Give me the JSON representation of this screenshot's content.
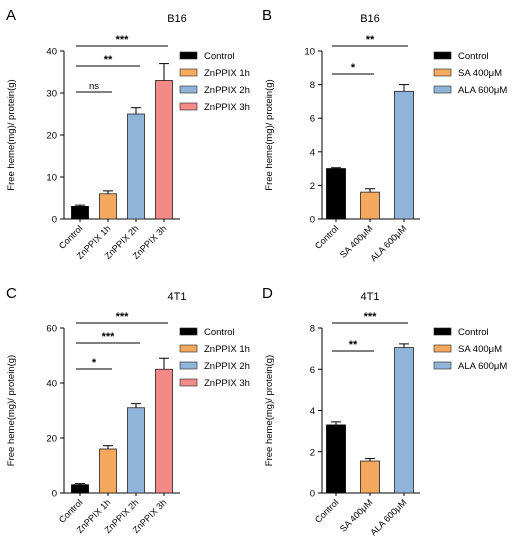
{
  "chart_data": [
    {
      "panel": "A",
      "type": "bar",
      "title": "B16",
      "ylabel": "Free heme(mg)/ protein(g)",
      "ylim": [
        0,
        40
      ],
      "yticks": [
        0,
        10,
        20,
        30,
        40
      ],
      "categories": [
        "Control",
        "ZnPPIX 1h",
        "ZnPPIX 2h",
        "ZnPPIX 3h"
      ],
      "values": [
        3,
        6,
        25,
        33
      ],
      "errors": [
        0.3,
        0.7,
        1.5,
        4
      ],
      "colors": [
        "#000000",
        "#f4a95e",
        "#8fb3d9",
        "#f28a88"
      ],
      "legend": [
        "Control",
        "ZnPPIX 1h",
        "ZnPPIX 2h",
        "ZnPPIX 3h"
      ],
      "significance": [
        {
          "from": 0,
          "to": 1,
          "label": "ns"
        },
        {
          "from": 0,
          "to": 2,
          "label": "**"
        },
        {
          "from": 0,
          "to": 3,
          "label": "***"
        }
      ]
    },
    {
      "panel": "B",
      "type": "bar",
      "title": "B16",
      "ylabel": "Free heme(mg)/ protein(g)",
      "ylim": [
        0,
        10
      ],
      "yticks": [
        0,
        2,
        4,
        6,
        8,
        10
      ],
      "categories": [
        "Control",
        "SA 400μM",
        "ALA 600μM"
      ],
      "values": [
        3.0,
        1.6,
        7.6
      ],
      "errors": [
        0.05,
        0.2,
        0.4
      ],
      "colors": [
        "#000000",
        "#f4a95e",
        "#8fb3d9"
      ],
      "legend": [
        "Control",
        "SA 400μM",
        "ALA 600μM"
      ],
      "significance": [
        {
          "from": 0,
          "to": 1,
          "label": "*"
        },
        {
          "from": 0,
          "to": 2,
          "label": "**"
        }
      ]
    },
    {
      "panel": "C",
      "type": "bar",
      "title": "4T1",
      "ylabel": "Free heme(mg)/ protein(g)",
      "ylim": [
        0,
        60
      ],
      "yticks": [
        0,
        20,
        40,
        60
      ],
      "categories": [
        "Control",
        "ZnPPIX 1h",
        "ZnPPIX 2h",
        "ZnPPIX 3h"
      ],
      "values": [
        3,
        16,
        31,
        45
      ],
      "errors": [
        0.4,
        1.2,
        1.5,
        4
      ],
      "colors": [
        "#000000",
        "#f4a95e",
        "#8fb3d9",
        "#f28a88"
      ],
      "legend": [
        "Control",
        "ZnPPIX 1h",
        "ZnPPIX 2h",
        "ZnPPIX 3h"
      ],
      "significance": [
        {
          "from": 0,
          "to": 1,
          "label": "*"
        },
        {
          "from": 0,
          "to": 2,
          "label": "***"
        },
        {
          "from": 0,
          "to": 3,
          "label": "***"
        }
      ]
    },
    {
      "panel": "D",
      "type": "bar",
      "title": "4T1",
      "ylabel": "Free heme(mg)/ protein(g)",
      "ylim": [
        0,
        8
      ],
      "yticks": [
        0,
        2,
        4,
        6,
        8
      ],
      "categories": [
        "Control",
        "SA 400μM",
        "ALA 600μM"
      ],
      "values": [
        3.3,
        1.55,
        7.05
      ],
      "errors": [
        0.15,
        0.12,
        0.18
      ],
      "colors": [
        "#000000",
        "#f4a95e",
        "#8fb3d9"
      ],
      "legend": [
        "Control",
        "SA 400μM",
        "ALA 600μM"
      ],
      "significance": [
        {
          "from": 0,
          "to": 1,
          "label": "**"
        },
        {
          "from": 0,
          "to": 2,
          "label": "***"
        }
      ]
    }
  ]
}
